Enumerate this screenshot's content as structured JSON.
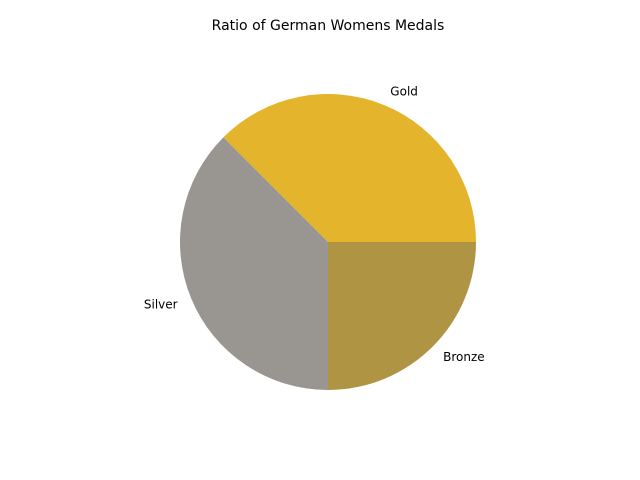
{
  "chart_data": {
    "type": "pie",
    "title": "Ratio of German Womens Medals",
    "categories": [
      "Gold",
      "Silver",
      "Bronze"
    ],
    "values": [
      3,
      3,
      2
    ],
    "colors": [
      "#e4b42c",
      "#999692",
      "#af9444"
    ],
    "start_angle": 0,
    "direction": "counterclockwise",
    "legend": "none"
  }
}
